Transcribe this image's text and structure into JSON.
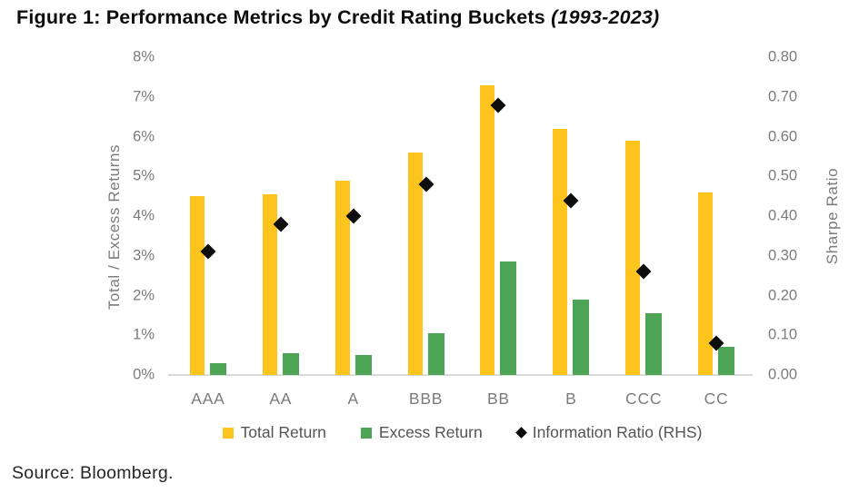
{
  "figure": {
    "title_main": "Figure 1: Performance Metrics by Credit Rating Buckets",
    "title_period": " (1993-2023)",
    "source": "Source: Bloomberg."
  },
  "chart_data": {
    "type": "bar",
    "subtype": "grouped bars with diamond scatter overlay on secondary axis",
    "categories": [
      "AAA",
      "AA",
      "A",
      "BBB",
      "BB",
      "B",
      "CCC",
      "CC"
    ],
    "series": [
      {
        "name": "Total Return",
        "type": "bar",
        "axis": "left",
        "color": "#FCC41D",
        "values": [
          4.5,
          4.55,
          4.9,
          5.6,
          7.3,
          6.2,
          5.9,
          4.6
        ]
      },
      {
        "name": "Excess Return",
        "type": "bar",
        "axis": "left",
        "color": "#4EA455",
        "values": [
          0.3,
          0.55,
          0.5,
          1.05,
          2.85,
          1.9,
          1.55,
          0.7
        ]
      },
      {
        "name": "Information Ratio (RHS)",
        "type": "scatter-diamond",
        "axis": "right",
        "color": "#0d0d0d",
        "values": [
          0.31,
          0.38,
          0.4,
          0.48,
          0.68,
          0.44,
          0.26,
          0.08
        ]
      }
    ],
    "left_axis": {
      "label": "Total / Excess Returns",
      "min": 0,
      "max": 8,
      "ticks": [
        "8%",
        "7%",
        "6%",
        "5%",
        "4%",
        "3%",
        "2%",
        "1%",
        "0%"
      ]
    },
    "right_axis": {
      "label": "Sharpe Ratio",
      "min": 0,
      "max": 0.8,
      "ticks": [
        "0.80",
        "0.70",
        "0.60",
        "0.50",
        "0.40",
        "0.30",
        "0.20",
        "0.10",
        "0.00"
      ]
    },
    "grid": false,
    "legend_position": "bottom"
  }
}
